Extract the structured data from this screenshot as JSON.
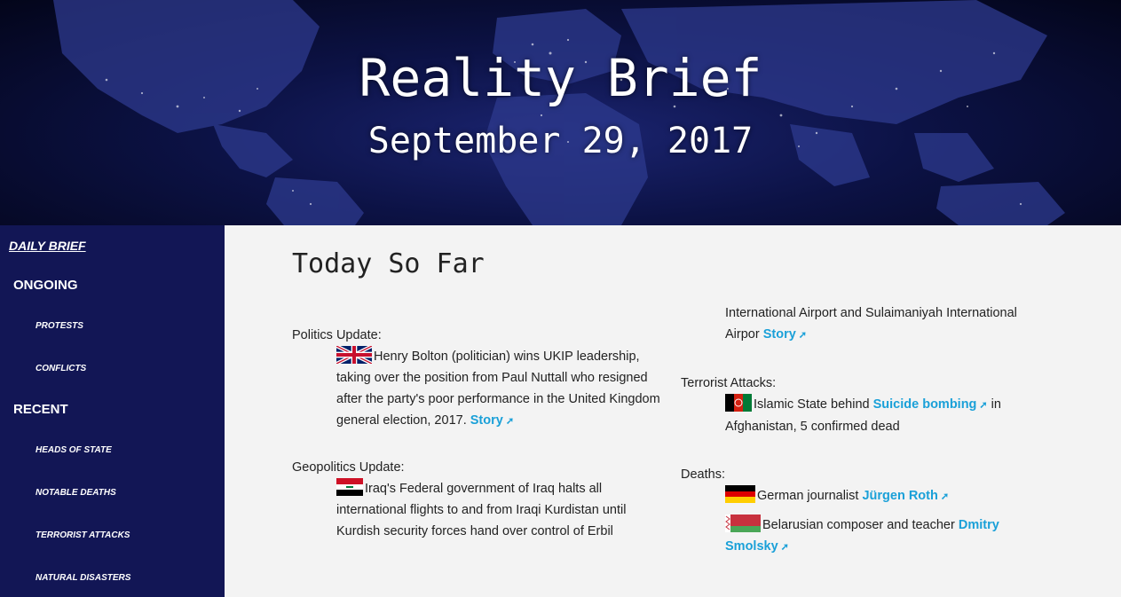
{
  "hero": {
    "title": "Reality Brief",
    "date": "September 29, 2017"
  },
  "sidebar": {
    "daily": "DAILY BRIEF",
    "ongoing": "ONGOING",
    "ongoing_items": [
      "PROTESTS",
      "CONFLICTS"
    ],
    "recent": "RECENT",
    "recent_items": [
      "HEADS OF STATE",
      "NOTABLE DEATHS",
      "TERRORIST ATTACKS",
      "NATURAL DISASTERS"
    ]
  },
  "main": {
    "title": "Today So Far",
    "politics": {
      "label": "Politics Update:",
      "text": "Henry Bolton (politician) wins UKIP leadership, taking over the position from Paul Nuttall who resigned after the party's poor performance in the United Kingdom general election, 2017.",
      "link": "Story"
    },
    "geopolitics": {
      "label": "Geopolitics Update:",
      "text": "Iraq's Federal government of Iraq halts all international flights to and from Iraqi Kurdistan until Kurdish security forces hand over control of Erbil International Airport and Sulaimaniyah International Airpor",
      "link": "Story"
    },
    "terrorist": {
      "label": "Terrorist Attacks:",
      "text_before": "Islamic State behind",
      "link": "Suicide bombing",
      "text_after": "in Afghanistan, 5 confirmed dead"
    },
    "deaths": {
      "label": "Deaths:",
      "items": [
        {
          "text": "German journalist",
          "link": "Jürgen Roth"
        },
        {
          "text": "Belarusian composer and teacher",
          "link": "Dmitry Smolsky"
        }
      ]
    }
  },
  "colors": {
    "sidebar": "#121655",
    "link": "#1aa0d8"
  }
}
